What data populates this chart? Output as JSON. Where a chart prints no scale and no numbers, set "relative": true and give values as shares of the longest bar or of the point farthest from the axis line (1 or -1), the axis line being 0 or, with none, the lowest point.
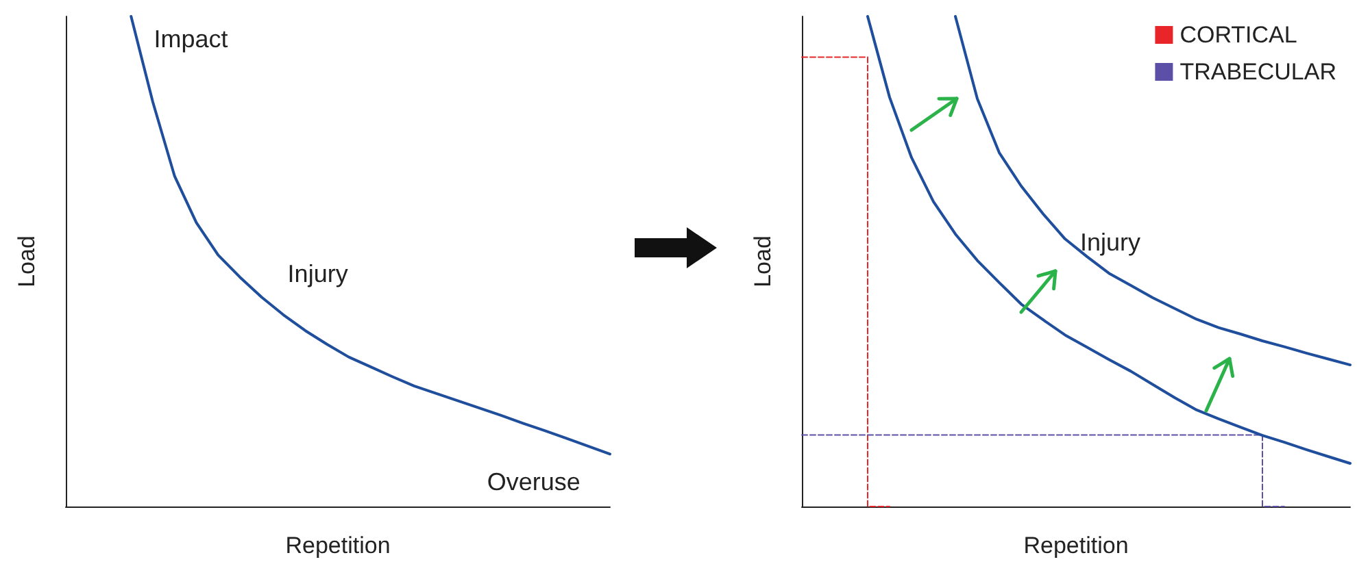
{
  "chart_data": [
    {
      "type": "line",
      "relative": true,
      "xlabel": "Repetition",
      "ylabel": "Load",
      "categories": [
        null,
        null,
        null,
        null,
        null,
        null,
        null,
        null,
        null,
        null,
        null,
        null,
        null,
        null,
        null,
        null,
        null,
        null,
        null,
        null,
        null,
        null,
        null,
        null,
        null,
        null
      ],
      "series": [
        {
          "color": "#1f4e9c",
          "line_style": "solid",
          "values": [
            null,
            null,
            null,
            1,
            0.825,
            0.674,
            0.579,
            0.513,
            0.468,
            0.427,
            0.391,
            0.359,
            0.331,
            0.305,
            0.285,
            0.265,
            0.246,
            0.231,
            0.216,
            0.201,
            0.186,
            0.17,
            0.155,
            0.139,
            0.123,
            0.107
          ]
        }
      ],
      "annotations": [
        "Impact",
        "Injury",
        "Overuse"
      ]
    },
    {
      "type": "line",
      "relative": true,
      "xlabel": "Repetition",
      "ylabel": "Load",
      "legend": "top right",
      "categories": [
        null,
        null,
        null,
        null,
        null,
        null,
        null,
        null,
        null,
        null,
        null,
        null,
        null,
        null,
        null,
        null,
        null,
        null,
        null,
        null,
        null,
        null,
        null,
        null,
        null,
        null
      ],
      "series": [
        {
          "color": "#1f4e9c",
          "line_style": "solid",
          "values": [
            null,
            null,
            null,
            1,
            0.835,
            0.712,
            0.622,
            0.556,
            0.502,
            0.457,
            0.413,
            0.381,
            0.35,
            0.325,
            0.3,
            0.276,
            0.249,
            0.222,
            0.197,
            0.179,
            0.162,
            0.145,
            0.131,
            0.116,
            0.102,
            0.088
          ]
        },
        {
          "color": "#1f4e9c",
          "line_style": "solid",
          "values": [
            null,
            null,
            null,
            null,
            null,
            null,
            null,
            1,
            0.832,
            0.722,
            0.654,
            0.597,
            0.546,
            0.51,
            0.476,
            0.451,
            0.426,
            0.404,
            0.382,
            0.365,
            0.352,
            0.338,
            0.326,
            0.313,
            0.301,
            0.289
          ]
        },
        {
          "name": "CORTICAL",
          "type": "step",
          "color": "#e8262a",
          "line_style": "dashed",
          "values": [
            0.917,
            0.917,
            0.917,
            0.917,
            0,
            null,
            null,
            null,
            null,
            null,
            null,
            null,
            null,
            null,
            null,
            null,
            null,
            null,
            null,
            null,
            null,
            null,
            null,
            null,
            null,
            null
          ]
        },
        {
          "name": "TRABECULAR",
          "type": "step",
          "color": "#5b4fa8",
          "line_style": "dashed",
          "values": [
            0.146,
            0.146,
            0.146,
            0.146,
            0.146,
            0.146,
            0.146,
            0.146,
            0.146,
            0.146,
            0.146,
            0.146,
            0.146,
            0.146,
            0.146,
            0.146,
            0.146,
            0.146,
            0.146,
            0.146,
            0.146,
            0.146,
            0,
            null,
            null,
            null
          ]
        }
      ],
      "annotations": [
        "Injury"
      ]
    }
  ]
}
